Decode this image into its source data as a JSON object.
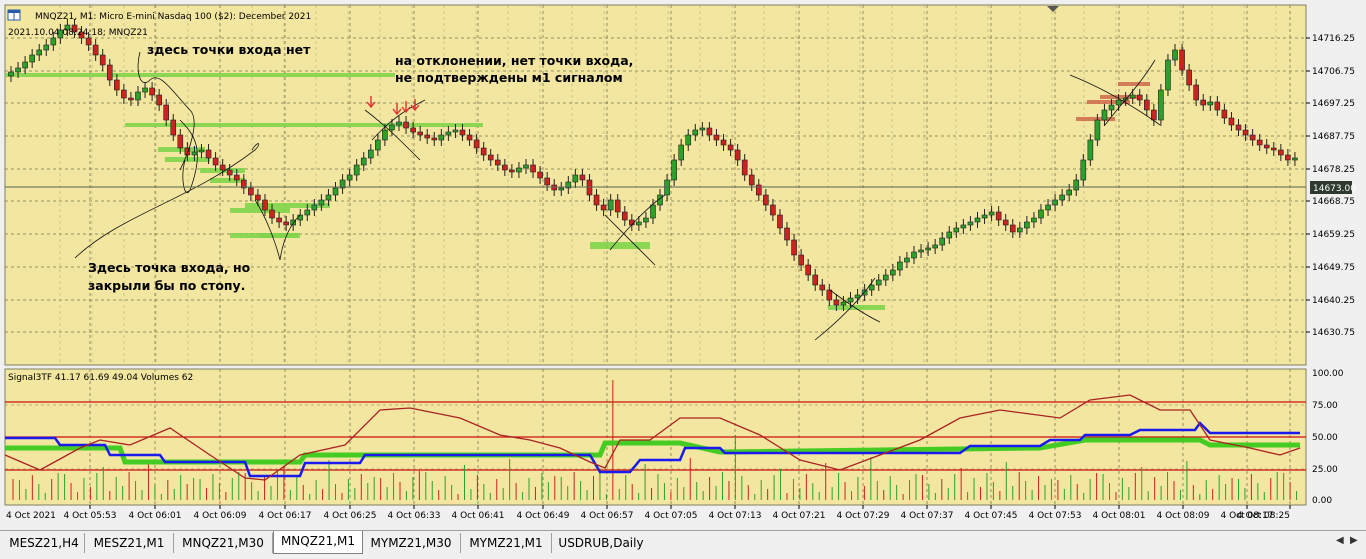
{
  "header": {
    "symbol_line": "MNQZ21, M1:  Micro E-mini Nasdaq 100 ($2): December 2021",
    "info_line": "2021.10.04 08:24:18; MNQZ21"
  },
  "price_axis": {
    "labels": [
      "14716.25",
      "14706.75",
      "14697.25",
      "14687.75",
      "14678.25",
      "14668.75",
      "14659.25",
      "14649.75",
      "14640.25",
      "14630.75"
    ],
    "current_price": "14673.00"
  },
  "indicator": {
    "title": "Signal3TF 41.17 61.69 49.04 Volumes 62",
    "axis_labels": [
      "100.00",
      "75.00",
      "50.00",
      "25.00",
      "0.00"
    ]
  },
  "time_axis": {
    "labels": [
      "4 Oct 2021",
      "4 Oct 05:53",
      "4 Oct 06:01",
      "4 Oct 06:09",
      "4 Oct 06:17",
      "4 Oct 06:25",
      "4 Oct 06:33",
      "4 Oct 06:41",
      "4 Oct 06:49",
      "4 Oct 06:57",
      "4 Oct 07:05",
      "4 Oct 07:13",
      "4 Oct 07:21",
      "4 Oct 07:29",
      "4 Oct 07:37",
      "4 Oct 07:45",
      "4 Oct 07:53",
      "4 Oct 08:01",
      "4 Oct 08:09",
      "4 Oct 08:17",
      "4 Oct 08:25"
    ]
  },
  "annotations": {
    "no_entry": "здесь точки входа нет",
    "deviation_1": "на отклонении, нет точки входа,",
    "deviation_2": "не подтверждены м1 сигналом",
    "entry_1": "Здесь точка входа, но",
    "entry_2": "закрыли бы по стопу."
  },
  "tabs": [
    "MESZ21,H4",
    "MESZ21,M1",
    "MNQZ21,M30",
    "MNQZ21,M1",
    "MYMZ21,M30",
    "MYMZ21,M1",
    "USDRUB,Daily"
  ],
  "active_tab": "MNQZ21,M1",
  "colors": {
    "chart_bg": "#f2e6a0",
    "bull": "#2ca02c",
    "bear": "#cc2222",
    "grid": "#8a8a5a",
    "zone_green": "#7fd44a",
    "zone_red": "#d07050",
    "indicator_red": "#cc1111",
    "indicator_blue": "#1a1aee",
    "indicator_green": "#44cc22",
    "indicator_dark_red": "#aa2222"
  }
}
